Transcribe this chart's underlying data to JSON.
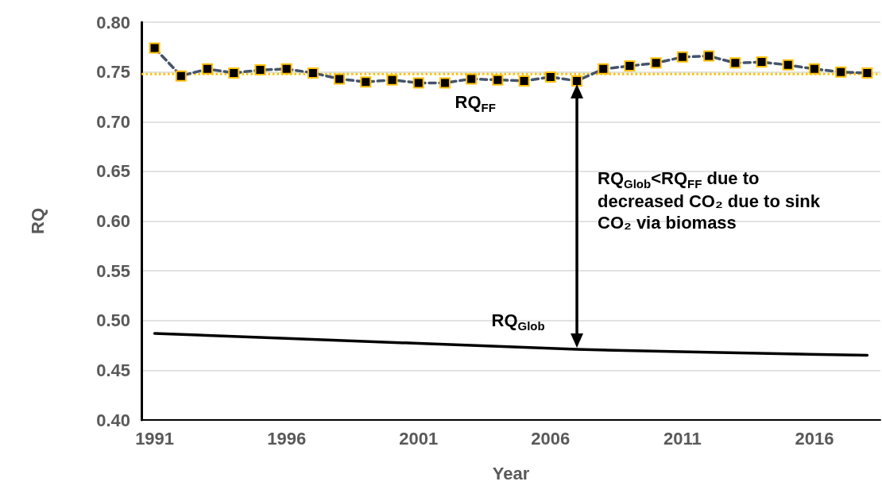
{
  "chart_data": {
    "type": "line",
    "xlabel": "Year",
    "ylabel": "RQ",
    "xlim": [
      1990.5,
      2018.5
    ],
    "xticks": [
      1991,
      1996,
      2001,
      2006,
      2011,
      2016
    ],
    "ylim": [
      0.4,
      0.8
    ],
    "yticks": [
      {
        "value": 0.4,
        "label": "0.40"
      },
      {
        "value": 0.45,
        "label": "0.45"
      },
      {
        "value": 0.5,
        "label": "0.50"
      },
      {
        "value": 0.55,
        "label": "0.55"
      },
      {
        "value": 0.6,
        "label": "0.60"
      },
      {
        "value": 0.65,
        "label": "0.65"
      },
      {
        "value": 0.7,
        "label": "0.70"
      },
      {
        "value": 0.75,
        "label": "0.75"
      },
      {
        "value": 0.8,
        "label": "0.80"
      }
    ],
    "grid": "y",
    "series": [
      {
        "color": "#44546a",
        "marker": "square",
        "line_style": "dashed",
        "x": [
          1991,
          1992,
          1993,
          1994,
          1995,
          1996,
          1997,
          1998,
          1999,
          2000,
          2001,
          2002,
          2003,
          2004,
          2005,
          2006,
          2007,
          2008,
          2009,
          2010,
          2011,
          2012,
          2013,
          2014,
          2015,
          2016,
          2017,
          2018
        ],
        "values": [
          0.774,
          0.746,
          0.753,
          0.749,
          0.752,
          0.753,
          0.749,
          0.743,
          0.74,
          0.742,
          0.739,
          0.739,
          0.743,
          0.742,
          0.741,
          0.745,
          0.741,
          0.753,
          0.756,
          0.759,
          0.765,
          0.766,
          0.759,
          0.76,
          0.757,
          0.753,
          0.75,
          0.749
        ]
      },
      {
        "color": "#000000",
        "marker": "none",
        "line_style": "solid",
        "x": [
          1991,
          1996,
          2001,
          2007,
          2012,
          2018
        ],
        "values": [
          0.487,
          0.482,
          0.477,
          0.471,
          0.468,
          0.465
        ]
      }
    ],
    "ref_lines": [
      {
        "axis": "y",
        "value": 0.748,
        "label": null,
        "color": "#ffc000",
        "line_style": "dotted"
      }
    ],
    "annotations": [
      "RQ$_{FF}$",
      "RQ$_{Glob}$",
      "RQ$_{Glob}$<RQ$_{FF}$ due to decreased CO₂ due to sink CO₂ via biomass"
    ]
  }
}
